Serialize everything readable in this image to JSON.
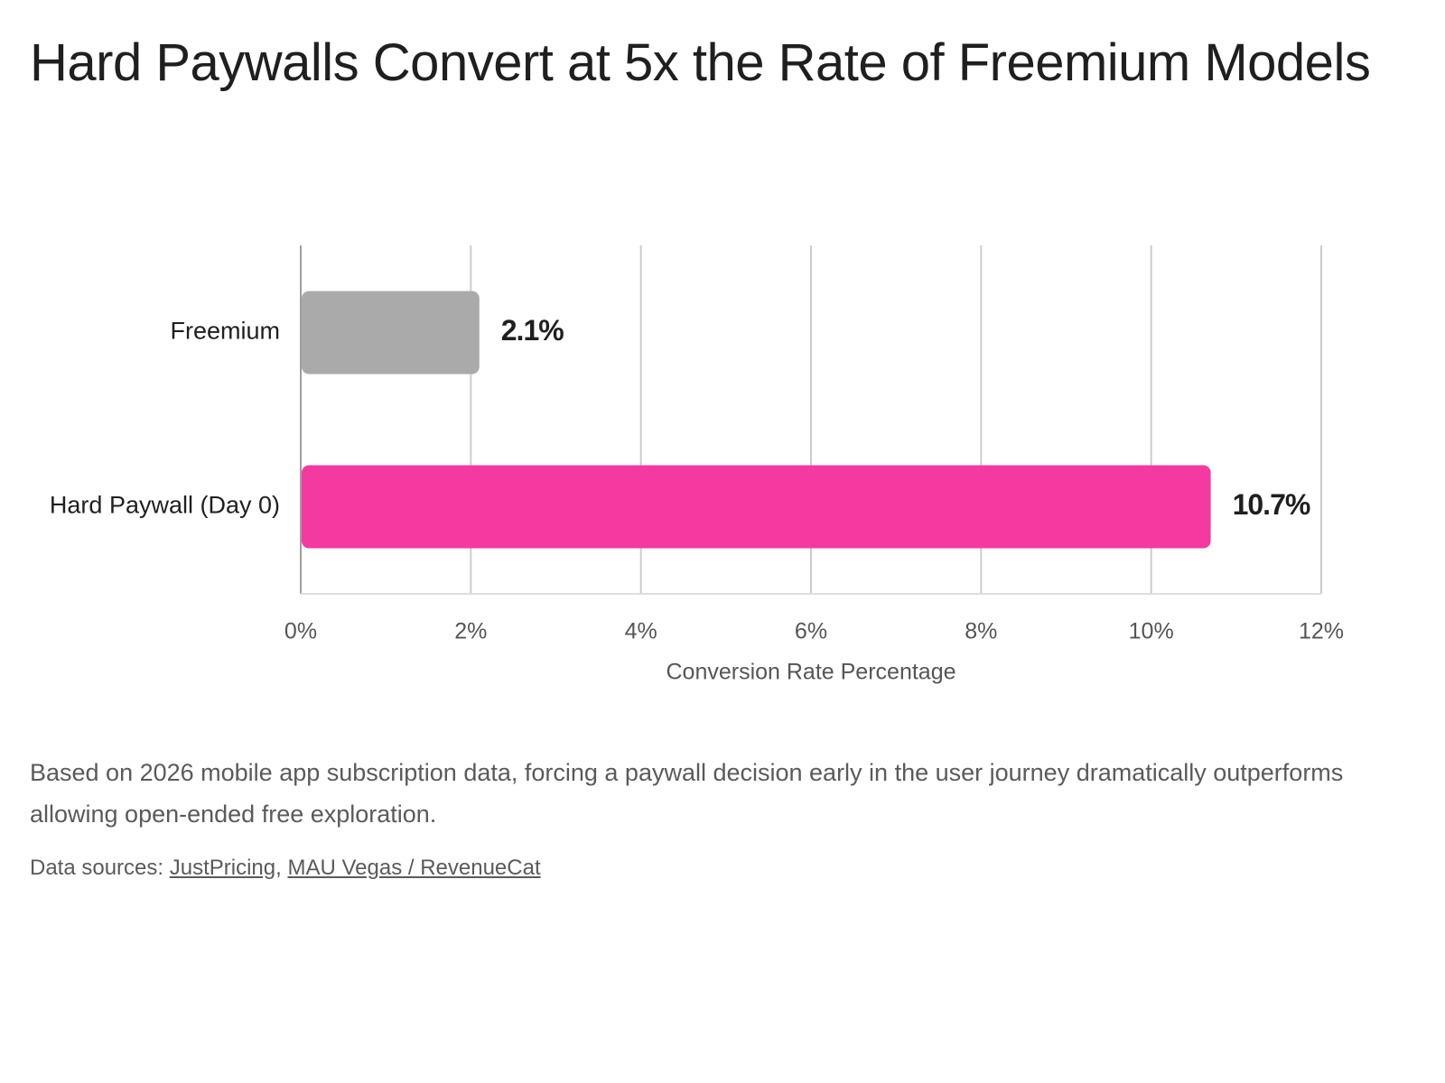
{
  "title": "Hard Paywalls Convert at 5x the Rate of Freemium Models",
  "description": "Based on 2026 mobile app subscription data, forcing a paywall decision early in the user journey dramatically outperforms allowing open-ended free exploration.",
  "sources": {
    "prefix": "Data sources:",
    "separator": ",",
    "links": [
      {
        "label": "JustPricing"
      },
      {
        "label": "MAU Vegas / RevenueCat"
      }
    ]
  },
  "chart_data": {
    "type": "bar",
    "orientation": "horizontal",
    "categories": [
      "Freemium",
      "Hard Paywall (Day 0)"
    ],
    "values": [
      2.1,
      10.7
    ],
    "value_labels": [
      "2.1%",
      "10.7%"
    ],
    "colors": [
      "#aaaaaa",
      "#f43aa0"
    ],
    "title": "Hard Paywalls Convert at 5x the Rate of Freemium Models",
    "xlabel": "Conversion Rate Percentage",
    "ylabel": "",
    "xlim": [
      0,
      12
    ],
    "ticks": [
      0,
      2,
      4,
      6,
      8,
      10,
      12
    ],
    "tick_labels": [
      "0%",
      "2%",
      "4%",
      "6%",
      "8%",
      "10%",
      "12%"
    ],
    "grid": true,
    "legend": "none"
  }
}
